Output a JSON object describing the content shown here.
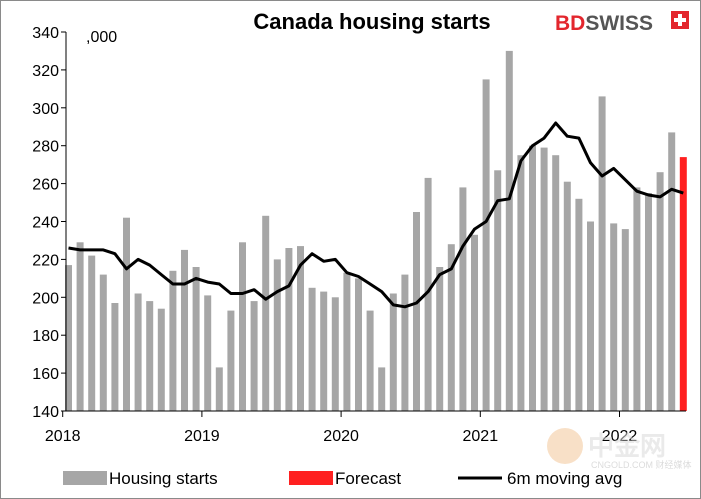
{
  "chart_data": {
    "type": "bar",
    "title": "Canada housing starts",
    "unit_label": ",000",
    "ylim": [
      140,
      340
    ],
    "y_ticks": [
      140,
      160,
      180,
      200,
      220,
      240,
      260,
      280,
      300,
      320,
      340
    ],
    "x_tick_labels": [
      "2018",
      "2019",
      "2020",
      "2021",
      "2022"
    ],
    "x_start": "2018-01",
    "grid": false,
    "legend_position": "bottom",
    "series": [
      {
        "name": "Housing starts",
        "type": "bar",
        "color": "#a6a6a6",
        "values": [
          217,
          229,
          222,
          212,
          197,
          242,
          202,
          198,
          194,
          214,
          225,
          216,
          201,
          163,
          193,
          229,
          198,
          243,
          220,
          226,
          227,
          205,
          203,
          200,
          213,
          210,
          193,
          163,
          202,
          212,
          245,
          263,
          216,
          228,
          258,
          233,
          315,
          267,
          330,
          275,
          280,
          279,
          275,
          261,
          252,
          240,
          306,
          239,
          236,
          258,
          255,
          266,
          287
        ]
      },
      {
        "name": "Forecast",
        "type": "bar",
        "color": "#ff2020",
        "index": 53,
        "value": 274
      },
      {
        "name": "6m moving avg",
        "type": "line",
        "color": "#000000",
        "values": [
          226,
          225,
          225,
          225,
          223,
          215,
          220,
          217,
          212,
          207,
          207,
          210,
          208,
          207,
          202,
          202,
          204,
          199,
          203,
          206,
          217,
          223,
          219,
          220,
          213,
          211,
          207,
          203,
          196,
          195,
          197,
          203,
          212,
          215,
          227,
          236,
          240,
          251,
          252,
          272,
          280,
          284,
          292,
          285,
          284,
          271,
          264,
          268,
          262,
          256,
          254,
          253,
          257,
          255
        ]
      }
    ]
  },
  "brand": {
    "part1": "BD",
    "part2": "SWISS"
  },
  "watermark": {
    "main": "中金网",
    "sub": "CNGOLD.COM 财经媒体"
  },
  "colors": {
    "brand_red": "#e3262d",
    "bar_gray": "#a6a6a6",
    "forecast_red": "#ff2020"
  }
}
